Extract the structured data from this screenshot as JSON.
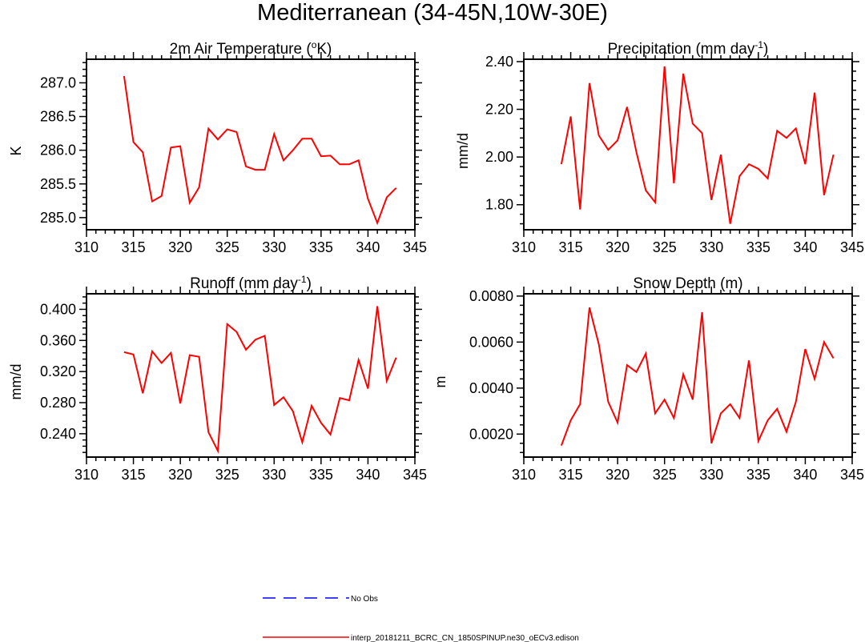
{
  "title": "Mediterranean (34-45N,10W-30E)",
  "colors": {
    "model": "#ff0000",
    "obs": "#0000ff",
    "axis": "#000000"
  },
  "legend": {
    "obs_label": "No Obs",
    "model_label": "interp_20181211_BCRC_CN_1850SPINUP.ne30_oECv3.edison"
  },
  "chart_data": [
    {
      "type": "line",
      "title": "2m Air Temperature (",
      "title_parts": {
        "pre": "2m Air Temperature (",
        "sup": "o",
        "post": "K)"
      },
      "ylabel": "K",
      "xlabel": "",
      "xlim": [
        310,
        345
      ],
      "ylim": [
        284.82,
        287.35
      ],
      "xticks": [
        310,
        315,
        320,
        325,
        330,
        335,
        340,
        345
      ],
      "xtick_labels": [
        "310",
        "315",
        "320",
        "325",
        "330",
        "335",
        "340",
        "345"
      ],
      "yticks": [
        285.0,
        285.5,
        286.0,
        286.5,
        287.0
      ],
      "ytick_labels": [
        "285.0",
        "285.5",
        "286.0",
        "286.5",
        "287.0"
      ],
      "x": [
        314,
        315,
        316,
        317,
        318,
        319,
        320,
        321,
        322,
        323,
        324,
        325,
        326,
        327,
        328,
        329,
        330,
        331,
        332,
        333,
        334,
        335,
        336,
        337,
        338,
        339,
        340,
        341,
        342,
        343
      ],
      "series": [
        {
          "name": "interp_20181211_BCRC_CN_1850SPINUP.ne30_oECv3.edison",
          "values": [
            287.1,
            286.12,
            285.97,
            285.24,
            285.32,
            286.04,
            286.06,
            285.22,
            285.45,
            286.32,
            286.16,
            286.31,
            286.27,
            285.76,
            285.71,
            285.71,
            286.24,
            285.85,
            286.0,
            286.17,
            286.17,
            285.91,
            285.92,
            285.79,
            285.79,
            285.85,
            285.28,
            284.92,
            285.3,
            285.44
          ]
        }
      ]
    },
    {
      "type": "line",
      "title": "Precipitation (mm day",
      "title_parts": {
        "pre": "Precipitation (mm day",
        "sup": "-1",
        "post": ")"
      },
      "ylabel": "mm/d",
      "xlabel": "",
      "xlim": [
        310,
        345
      ],
      "ylim": [
        1.695,
        2.41
      ],
      "xticks": [
        310,
        315,
        320,
        325,
        330,
        335,
        340,
        345
      ],
      "xtick_labels": [
        "310",
        "315",
        "320",
        "325",
        "330",
        "335",
        "340",
        "345"
      ],
      "yticks": [
        1.8,
        2.0,
        2.2,
        2.4
      ],
      "ytick_labels": [
        "1.80",
        "2.00",
        "2.20",
        "2.40"
      ],
      "x": [
        314,
        315,
        316,
        317,
        318,
        319,
        320,
        321,
        322,
        323,
        324,
        325,
        326,
        327,
        328,
        329,
        330,
        331,
        332,
        333,
        334,
        335,
        336,
        337,
        338,
        339,
        340,
        341,
        342,
        343
      ],
      "series": [
        {
          "name": "interp_20181211_BCRC_CN_1850SPINUP.ne30_oECv3.edison",
          "values": [
            1.97,
            2.17,
            1.78,
            2.31,
            2.09,
            2.03,
            2.07,
            2.21,
            2.02,
            1.86,
            1.81,
            2.38,
            1.89,
            2.35,
            2.14,
            2.1,
            1.82,
            2.01,
            1.72,
            1.92,
            1.97,
            1.95,
            1.91,
            2.11,
            2.08,
            2.12,
            1.97,
            2.27,
            1.84,
            2.01
          ]
        }
      ]
    },
    {
      "type": "line",
      "title": "Runoff (mm day",
      "title_parts": {
        "pre": "Runoff (mm day",
        "sup": "-1",
        "post": ")"
      },
      "ylabel": "mm/d",
      "xlabel": "",
      "xlim": [
        310,
        345
      ],
      "ylim": [
        0.21,
        0.42
      ],
      "xticks": [
        310,
        315,
        320,
        325,
        330,
        335,
        340,
        345
      ],
      "xtick_labels": [
        "310",
        "315",
        "320",
        "325",
        "330",
        "335",
        "340",
        "345"
      ],
      "yticks": [
        0.24,
        0.28,
        0.32,
        0.36,
        0.4
      ],
      "ytick_labels": [
        "0.240",
        "0.280",
        "0.320",
        "0.360",
        "0.400"
      ],
      "x": [
        314,
        315,
        316,
        317,
        318,
        319,
        320,
        321,
        322,
        323,
        324,
        325,
        326,
        327,
        328,
        329,
        330,
        331,
        332,
        333,
        334,
        335,
        336,
        337,
        338,
        339,
        340,
        341,
        342,
        343
      ],
      "series": [
        {
          "name": "interp_20181211_BCRC_CN_1850SPINUP.ne30_oECv3.edison",
          "values": [
            0.345,
            0.342,
            0.292,
            0.346,
            0.331,
            0.344,
            0.279,
            0.341,
            0.339,
            0.242,
            0.218,
            0.381,
            0.371,
            0.348,
            0.361,
            0.366,
            0.277,
            0.287,
            0.269,
            0.229,
            0.276,
            0.254,
            0.239,
            0.286,
            0.283,
            0.335,
            0.298,
            0.404,
            0.308,
            0.338
          ]
        }
      ]
    },
    {
      "type": "line",
      "title": "Snow Depth (m)",
      "title_parts": {
        "pre": "Snow Depth (m)",
        "sup": "",
        "post": ""
      },
      "ylabel": "m",
      "xlabel": "",
      "xlim": [
        310,
        345
      ],
      "ylim": [
        0.001,
        0.0081
      ],
      "xticks": [
        310,
        315,
        320,
        325,
        330,
        335,
        340,
        345
      ],
      "xtick_labels": [
        "310",
        "315",
        "320",
        "325",
        "330",
        "335",
        "340",
        "345"
      ],
      "yticks": [
        0.002,
        0.004,
        0.006,
        0.008
      ],
      "ytick_labels": [
        "0.0020",
        "0.0040",
        "0.0060",
        "0.0080"
      ],
      "x": [
        314,
        315,
        316,
        317,
        318,
        319,
        320,
        321,
        322,
        323,
        324,
        325,
        326,
        327,
        328,
        329,
        330,
        331,
        332,
        333,
        334,
        335,
        336,
        337,
        338,
        339,
        340,
        341,
        342,
        343
      ],
      "series": [
        {
          "name": "interp_20181211_BCRC_CN_1850SPINUP.ne30_oECv3.edison",
          "values": [
            0.0015,
            0.0026,
            0.0033,
            0.0075,
            0.0059,
            0.0034,
            0.0025,
            0.005,
            0.0047,
            0.0055,
            0.0029,
            0.0035,
            0.0027,
            0.0046,
            0.0035,
            0.0073,
            0.0016,
            0.0029,
            0.0033,
            0.0027,
            0.0052,
            0.0017,
            0.0026,
            0.0031,
            0.0021,
            0.0034,
            0.0057,
            0.0044,
            0.006,
            0.0053
          ]
        }
      ]
    }
  ]
}
